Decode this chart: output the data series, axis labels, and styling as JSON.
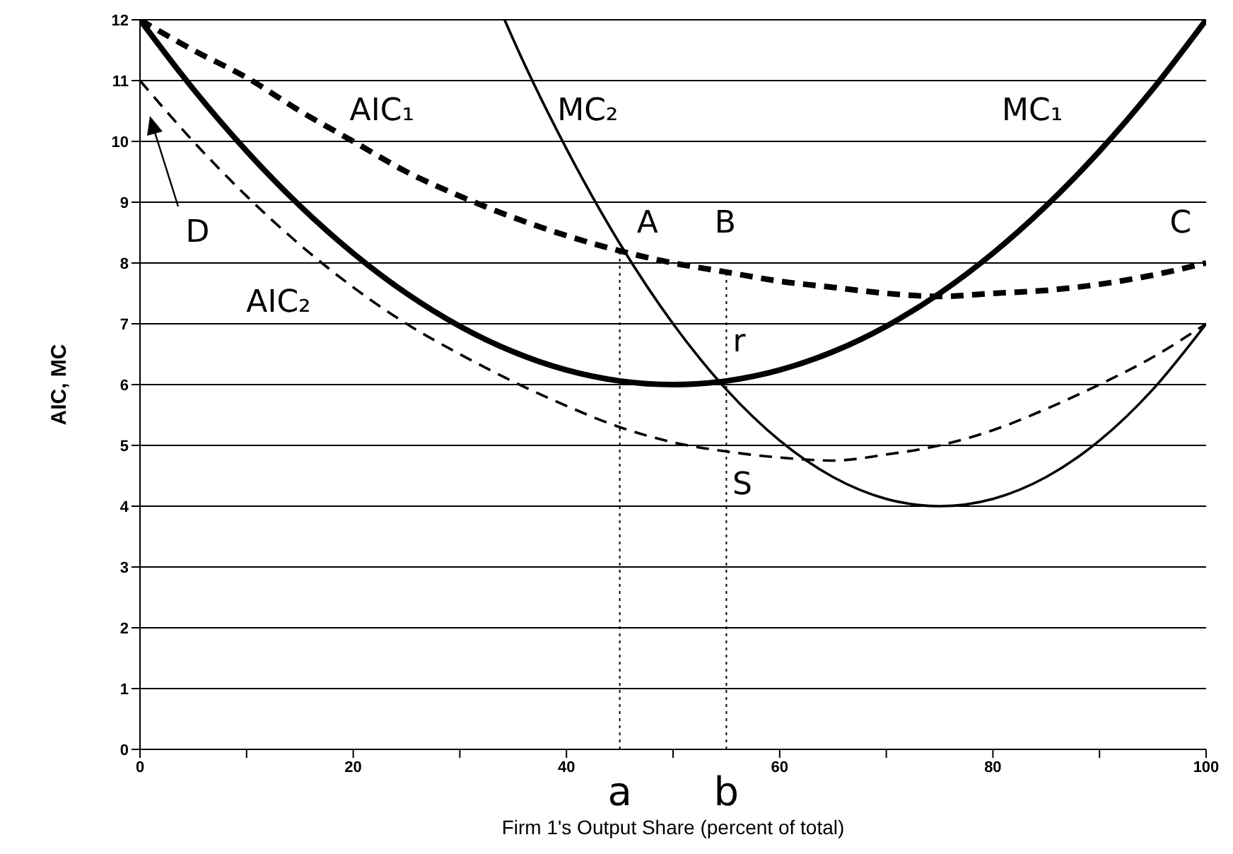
{
  "chart_data": {
    "type": "line",
    "xlabel": "Firm 1's Output Share (percent of total)",
    "ylabel": "AIC, MC",
    "xlim": [
      0,
      100
    ],
    "ylim": [
      0,
      12
    ],
    "xticks": [
      0,
      {
        "value": 10,
        "label": null
      },
      20,
      {
        "value": 30,
        "label": null
      },
      40,
      {
        "value": 50,
        "label": null
      },
      60,
      {
        "value": 70,
        "label": null
      },
      80,
      {
        "value": 90,
        "label": null
      },
      100
    ],
    "yticks": [
      0,
      1,
      2,
      3,
      4,
      5,
      6,
      7,
      8,
      9,
      10,
      11,
      12
    ],
    "grid": "y",
    "marker": "none",
    "series": [
      {
        "color": "#000000",
        "line_style": "solid",
        "x": [
          0,
          5,
          10,
          15,
          20,
          25,
          30,
          35,
          40,
          45,
          50,
          55,
          60,
          65,
          70,
          75,
          80,
          85,
          90,
          95,
          100
        ],
        "values": [
          12,
          10.86,
          9.84,
          8.94,
          8.16,
          7.5,
          6.96,
          6.54,
          6.24,
          6.06,
          6,
          6.06,
          6.24,
          6.54,
          6.96,
          7.5,
          8.16,
          8.94,
          9.84,
          10.86,
          12
        ]
      },
      {
        "color": "#000000",
        "line_style": "dashed",
        "x": [
          0,
          5,
          10,
          15,
          20,
          25,
          30,
          35,
          40,
          45,
          50,
          55,
          60,
          65,
          70,
          75,
          80,
          85,
          90,
          95,
          100
        ],
        "values": [
          12,
          11.5,
          11.05,
          10.5,
          10,
          9.5,
          9.1,
          8.75,
          8.45,
          8.2,
          8,
          7.85,
          7.7,
          7.6,
          7.5,
          7.45,
          7.5,
          7.55,
          7.65,
          7.8,
          8
        ]
      },
      {
        "color": "#000000",
        "line_style": "solid",
        "x": [
          34.2,
          35,
          40,
          45,
          50,
          55,
          60,
          65,
          70,
          75,
          80,
          85,
          90,
          95,
          100
        ],
        "values": [
          12,
          11.68,
          9.88,
          8.32,
          7,
          5.92,
          5.08,
          4.48,
          4.12,
          4,
          4.12,
          4.48,
          5.08,
          5.92,
          7
        ]
      },
      {
        "color": "#000000",
        "line_style": "dashed",
        "x": [
          0,
          5,
          10,
          15,
          20,
          25,
          30,
          35,
          40,
          45,
          50,
          55,
          60,
          65,
          70,
          75,
          80,
          85,
          90,
          95,
          100
        ],
        "values": [
          11,
          10,
          9.1,
          8.3,
          7.6,
          7,
          6.5,
          6.05,
          5.65,
          5.3,
          5.05,
          4.9,
          4.8,
          4.75,
          4.85,
          5,
          5.25,
          5.6,
          6,
          6.45,
          7
        ]
      },
      {
        "color": "#000000",
        "line_style": "dotted",
        "x": [
          45,
          45
        ],
        "values": [
          0,
          8.2
        ]
      },
      {
        "color": "#000000",
        "line_style": "dotted",
        "x": [
          55,
          55
        ],
        "values": [
          0,
          7.85
        ]
      }
    ],
    "annotations": [
      "AIC₁",
      "MC₂",
      "MC₁",
      "AIC₂",
      "A",
      "B",
      "C",
      "D",
      "r",
      "S",
      "a",
      "b"
    ]
  }
}
